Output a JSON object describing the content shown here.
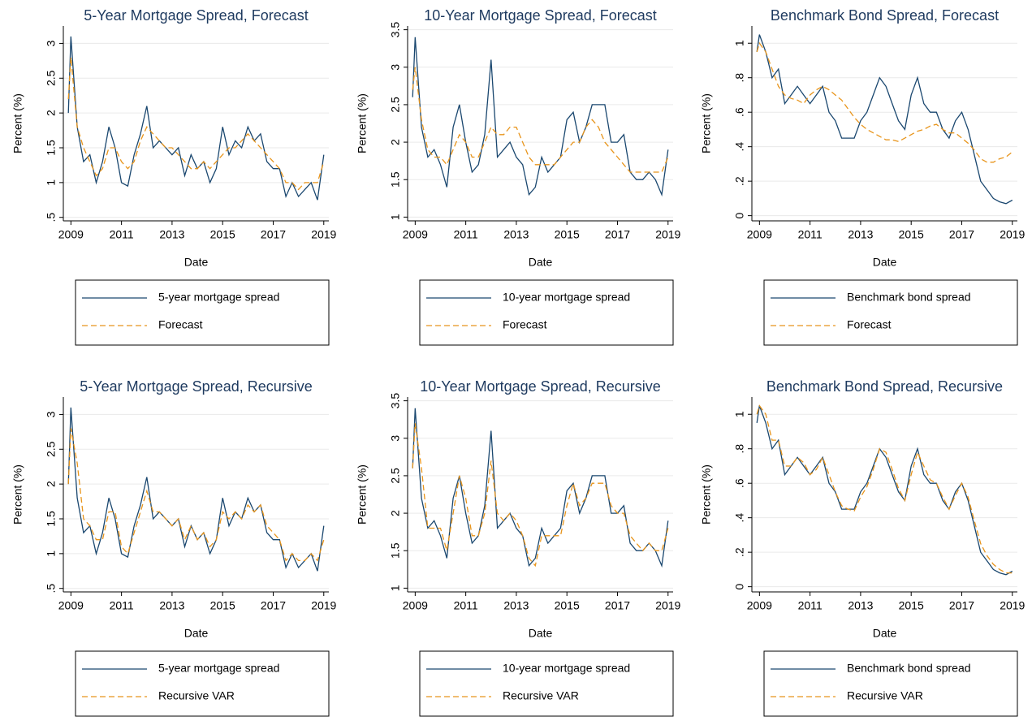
{
  "chart_data": [
    {
      "type": "line",
      "title": "5-Year Mortgage Spread, Forecast",
      "xlabel": "Date",
      "ylabel": "Percent (%)",
      "x": [
        2008.9,
        2009,
        2009.25,
        2009.5,
        2009.75,
        2010,
        2010.25,
        2010.5,
        2010.75,
        2011,
        2011.25,
        2011.5,
        2011.75,
        2012,
        2012.25,
        2012.5,
        2012.75,
        2013,
        2013.25,
        2013.5,
        2013.75,
        2014,
        2014.25,
        2014.5,
        2014.75,
        2015,
        2015.25,
        2015.5,
        2015.75,
        2016,
        2016.25,
        2016.5,
        2016.75,
        2017,
        2017.25,
        2017.5,
        2017.75,
        2018,
        2018.25,
        2018.5,
        2018.75,
        2019
      ],
      "xlim": [
        2008.7,
        2019.2
      ],
      "xticks": [
        2009,
        2011,
        2013,
        2015,
        2017,
        2019
      ],
      "ylim": [
        0.45,
        3.25
      ],
      "yticks": [
        {
          "value": 0.5,
          "label": ".5"
        },
        1,
        1.5,
        2,
        2.5,
        3
      ],
      "grid": true,
      "series": [
        {
          "name": "5-year mortgage spread",
          "color": "#1a476f",
          "dashed": false,
          "values": [
            2.0,
            3.1,
            1.8,
            1.3,
            1.4,
            1.0,
            1.3,
            1.8,
            1.5,
            1.0,
            0.95,
            1.4,
            1.7,
            2.1,
            1.5,
            1.6,
            1.5,
            1.4,
            1.5,
            1.1,
            1.4,
            1.2,
            1.3,
            1.0,
            1.2,
            1.8,
            1.4,
            1.6,
            1.5,
            1.8,
            1.6,
            1.7,
            1.3,
            1.2,
            1.2,
            0.8,
            1.0,
            0.8,
            0.9,
            1.0,
            0.75,
            1.4
          ]
        },
        {
          "name": "Forecast",
          "color": "#e8951c",
          "dashed": true,
          "values": [
            2.2,
            2.8,
            1.8,
            1.5,
            1.3,
            1.1,
            1.2,
            1.5,
            1.5,
            1.3,
            1.2,
            1.3,
            1.6,
            1.8,
            1.7,
            1.6,
            1.5,
            1.5,
            1.4,
            1.3,
            1.2,
            1.2,
            1.3,
            1.2,
            1.3,
            1.4,
            1.5,
            1.5,
            1.6,
            1.7,
            1.6,
            1.5,
            1.4,
            1.3,
            1.2,
            1.0,
            1.0,
            0.9,
            1.0,
            1.0,
            1.0,
            1.3
          ]
        }
      ]
    },
    {
      "type": "line",
      "title": "10-Year Mortgage Spread, Forecast",
      "xlabel": "Date",
      "ylabel": "Percent (%)",
      "x": [
        2008.9,
        2009,
        2009.25,
        2009.5,
        2009.75,
        2010,
        2010.25,
        2010.5,
        2010.75,
        2011,
        2011.25,
        2011.5,
        2011.75,
        2012,
        2012.25,
        2012.5,
        2012.75,
        2013,
        2013.25,
        2013.5,
        2013.75,
        2014,
        2014.25,
        2014.5,
        2014.75,
        2015,
        2015.25,
        2015.5,
        2015.75,
        2016,
        2016.25,
        2016.5,
        2016.75,
        2017,
        2017.25,
        2017.5,
        2017.75,
        2018,
        2018.25,
        2018.5,
        2018.75,
        2019
      ],
      "xlim": [
        2008.7,
        2019.2
      ],
      "xticks": [
        2009,
        2011,
        2013,
        2015,
        2017,
        2019
      ],
      "ylim": [
        0.95,
        3.55
      ],
      "yticks": [
        1,
        1.5,
        2,
        2.5,
        3,
        3.5
      ],
      "grid": true,
      "series": [
        {
          "name": "10-year mortgage spread",
          "color": "#1a476f",
          "dashed": false,
          "values": [
            2.6,
            3.4,
            2.2,
            1.8,
            1.9,
            1.7,
            1.4,
            2.2,
            2.5,
            2.0,
            1.6,
            1.7,
            2.1,
            3.1,
            1.8,
            1.9,
            2.0,
            1.8,
            1.7,
            1.3,
            1.4,
            1.8,
            1.6,
            1.7,
            1.8,
            2.3,
            2.4,
            2.0,
            2.2,
            2.5,
            2.5,
            2.5,
            2.0,
            2.0,
            2.1,
            1.6,
            1.5,
            1.5,
            1.6,
            1.5,
            1.3,
            1.9
          ]
        },
        {
          "name": "Forecast",
          "color": "#e8951c",
          "dashed": true,
          "values": [
            2.7,
            3.0,
            2.3,
            1.9,
            1.8,
            1.8,
            1.7,
            1.9,
            2.1,
            2.0,
            1.8,
            1.8,
            2.0,
            2.2,
            2.1,
            2.1,
            2.2,
            2.2,
            2.0,
            1.8,
            1.7,
            1.7,
            1.7,
            1.7,
            1.8,
            1.9,
            2.0,
            2.0,
            2.2,
            2.3,
            2.2,
            2.0,
            1.9,
            1.8,
            1.7,
            1.6,
            1.6,
            1.6,
            1.6,
            1.6,
            1.6,
            1.8
          ]
        }
      ]
    },
    {
      "type": "line",
      "title": "Benchmark Bond Spread, Forecast",
      "xlabel": "Date",
      "ylabel": "Percent (%)",
      "x": [
        2008.9,
        2009,
        2009.25,
        2009.5,
        2009.75,
        2010,
        2010.25,
        2010.5,
        2010.75,
        2011,
        2011.25,
        2011.5,
        2011.75,
        2012,
        2012.25,
        2012.5,
        2012.75,
        2013,
        2013.25,
        2013.5,
        2013.75,
        2014,
        2014.25,
        2014.5,
        2014.75,
        2015,
        2015.25,
        2015.5,
        2015.75,
        2016,
        2016.25,
        2016.5,
        2016.75,
        2017,
        2017.25,
        2017.5,
        2017.75,
        2018,
        2018.25,
        2018.5,
        2018.75,
        2019
      ],
      "xlim": [
        2008.7,
        2019.2
      ],
      "xticks": [
        2009,
        2011,
        2013,
        2015,
        2017,
        2019
      ],
      "ylim": [
        -0.03,
        1.1
      ],
      "yticks": [
        0,
        {
          "value": 0.2,
          "label": ".2"
        },
        {
          "value": 0.4,
          "label": ".4"
        },
        {
          "value": 0.6,
          "label": ".6"
        },
        {
          "value": 0.8,
          "label": ".8"
        },
        1
      ],
      "grid": true,
      "series": [
        {
          "name": "Benchmark bond spread",
          "color": "#1a476f",
          "dashed": false,
          "values": [
            0.95,
            1.05,
            0.95,
            0.8,
            0.85,
            0.65,
            0.7,
            0.75,
            0.7,
            0.65,
            0.7,
            0.75,
            0.6,
            0.55,
            0.45,
            0.45,
            0.45,
            0.55,
            0.6,
            0.7,
            0.8,
            0.75,
            0.65,
            0.55,
            0.5,
            0.7,
            0.8,
            0.65,
            0.6,
            0.6,
            0.5,
            0.45,
            0.55,
            0.6,
            0.5,
            0.35,
            0.2,
            0.15,
            0.1,
            0.08,
            0.07,
            0.09
          ]
        },
        {
          "name": "Forecast",
          "color": "#e8951c",
          "dashed": true,
          "values": [
            0.95,
            1.0,
            0.95,
            0.85,
            0.75,
            0.7,
            0.68,
            0.67,
            0.65,
            0.7,
            0.73,
            0.75,
            0.73,
            0.7,
            0.67,
            0.62,
            0.57,
            0.53,
            0.5,
            0.48,
            0.46,
            0.44,
            0.44,
            0.43,
            0.45,
            0.47,
            0.49,
            0.5,
            0.52,
            0.53,
            0.5,
            0.48,
            0.48,
            0.45,
            0.42,
            0.38,
            0.33,
            0.31,
            0.31,
            0.33,
            0.34,
            0.37
          ]
        }
      ]
    },
    {
      "type": "line",
      "title": "5-Year Mortgage Spread, Recursive",
      "xlabel": "Date",
      "ylabel": "Percent (%)",
      "x": [
        2008.9,
        2009,
        2009.25,
        2009.5,
        2009.75,
        2010,
        2010.25,
        2010.5,
        2010.75,
        2011,
        2011.25,
        2011.5,
        2011.75,
        2012,
        2012.25,
        2012.5,
        2012.75,
        2013,
        2013.25,
        2013.5,
        2013.75,
        2014,
        2014.25,
        2014.5,
        2014.75,
        2015,
        2015.25,
        2015.5,
        2015.75,
        2016,
        2016.25,
        2016.5,
        2016.75,
        2017,
        2017.25,
        2017.5,
        2017.75,
        2018,
        2018.25,
        2018.5,
        2018.75,
        2019
      ],
      "xlim": [
        2008.7,
        2019.2
      ],
      "xticks": [
        2009,
        2011,
        2013,
        2015,
        2017,
        2019
      ],
      "ylim": [
        0.45,
        3.25
      ],
      "yticks": [
        {
          "value": 0.5,
          "label": ".5"
        },
        1,
        1.5,
        2,
        2.5,
        3
      ],
      "grid": true,
      "series": [
        {
          "name": "5-year mortgage spread",
          "color": "#1a476f",
          "dashed": false,
          "values": [
            2.0,
            3.1,
            1.8,
            1.3,
            1.4,
            1.0,
            1.3,
            1.8,
            1.5,
            1.0,
            0.95,
            1.4,
            1.7,
            2.1,
            1.5,
            1.6,
            1.5,
            1.4,
            1.5,
            1.1,
            1.4,
            1.2,
            1.3,
            1.0,
            1.2,
            1.8,
            1.4,
            1.6,
            1.5,
            1.8,
            1.6,
            1.7,
            1.3,
            1.2,
            1.2,
            0.8,
            1.0,
            0.8,
            0.9,
            1.0,
            0.75,
            1.4
          ]
        },
        {
          "name": "Recursive VAR",
          "color": "#e8951c",
          "dashed": true,
          "values": [
            2.0,
            2.8,
            2.3,
            1.5,
            1.4,
            1.2,
            1.2,
            1.6,
            1.6,
            1.1,
            1.0,
            1.3,
            1.6,
            1.9,
            1.6,
            1.6,
            1.5,
            1.4,
            1.5,
            1.2,
            1.4,
            1.2,
            1.3,
            1.1,
            1.2,
            1.6,
            1.5,
            1.6,
            1.5,
            1.7,
            1.6,
            1.7,
            1.4,
            1.3,
            1.2,
            0.9,
            1.0,
            0.9,
            0.9,
            1.0,
            0.9,
            1.2
          ]
        }
      ]
    },
    {
      "type": "line",
      "title": "10-Year Mortgage Spread, Recursive",
      "xlabel": "Date",
      "ylabel": "Percent (%)",
      "x": [
        2008.9,
        2009,
        2009.25,
        2009.5,
        2009.75,
        2010,
        2010.25,
        2010.5,
        2010.75,
        2011,
        2011.25,
        2011.5,
        2011.75,
        2012,
        2012.25,
        2012.5,
        2012.75,
        2013,
        2013.25,
        2013.5,
        2013.75,
        2014,
        2014.25,
        2014.5,
        2014.75,
        2015,
        2015.25,
        2015.5,
        2015.75,
        2016,
        2016.25,
        2016.5,
        2016.75,
        2017,
        2017.25,
        2017.5,
        2017.75,
        2018,
        2018.25,
        2018.5,
        2018.75,
        2019
      ],
      "xlim": [
        2008.7,
        2019.2
      ],
      "xticks": [
        2009,
        2011,
        2013,
        2015,
        2017,
        2019
      ],
      "ylim": [
        0.95,
        3.55
      ],
      "yticks": [
        1,
        1.5,
        2,
        2.5,
        3,
        3.5
      ],
      "grid": true,
      "series": [
        {
          "name": "10-year mortgage spread",
          "color": "#1a476f",
          "dashed": false,
          "values": [
            2.6,
            3.4,
            2.2,
            1.8,
            1.9,
            1.7,
            1.4,
            2.2,
            2.5,
            2.0,
            1.6,
            1.7,
            2.1,
            3.1,
            1.8,
            1.9,
            2.0,
            1.8,
            1.7,
            1.3,
            1.4,
            1.8,
            1.6,
            1.7,
            1.8,
            2.3,
            2.4,
            2.0,
            2.2,
            2.5,
            2.5,
            2.5,
            2.0,
            2.0,
            2.1,
            1.6,
            1.5,
            1.5,
            1.6,
            1.5,
            1.3,
            1.9
          ]
        },
        {
          "name": "Recursive VAR",
          "color": "#e8951c",
          "dashed": true,
          "values": [
            2.6,
            3.2,
            2.6,
            1.8,
            1.8,
            1.8,
            1.5,
            2.0,
            2.5,
            2.2,
            1.7,
            1.7,
            2.0,
            2.7,
            2.0,
            1.9,
            2.0,
            1.9,
            1.7,
            1.4,
            1.3,
            1.7,
            1.7,
            1.7,
            1.7,
            2.1,
            2.4,
            2.1,
            2.2,
            2.4,
            2.4,
            2.4,
            2.1,
            2.0,
            2.0,
            1.7,
            1.6,
            1.5,
            1.6,
            1.5,
            1.5,
            1.8
          ]
        }
      ]
    },
    {
      "type": "line",
      "title": "Benchmark Bond Spread, Recursive",
      "xlabel": "Date",
      "ylabel": "Percent (%)",
      "x": [
        2008.9,
        2009,
        2009.25,
        2009.5,
        2009.75,
        2010,
        2010.25,
        2010.5,
        2010.75,
        2011,
        2011.25,
        2011.5,
        2011.75,
        2012,
        2012.25,
        2012.5,
        2012.75,
        2013,
        2013.25,
        2013.5,
        2013.75,
        2014,
        2014.25,
        2014.5,
        2014.75,
        2015,
        2015.25,
        2015.5,
        2015.75,
        2016,
        2016.25,
        2016.5,
        2016.75,
        2017,
        2017.25,
        2017.5,
        2017.75,
        2018,
        2018.25,
        2018.5,
        2018.75,
        2019
      ],
      "xlim": [
        2008.7,
        2019.2
      ],
      "xticks": [
        2009,
        2011,
        2013,
        2015,
        2017,
        2019
      ],
      "ylim": [
        -0.03,
        1.1
      ],
      "yticks": [
        0,
        {
          "value": 0.2,
          "label": ".2"
        },
        {
          "value": 0.4,
          "label": ".4"
        },
        {
          "value": 0.6,
          "label": ".6"
        },
        {
          "value": 0.8,
          "label": ".8"
        },
        1
      ],
      "grid": true,
      "series": [
        {
          "name": "Benchmark bond spread",
          "color": "#1a476f",
          "dashed": false,
          "values": [
            0.95,
            1.05,
            0.95,
            0.8,
            0.85,
            0.65,
            0.7,
            0.75,
            0.7,
            0.65,
            0.7,
            0.75,
            0.6,
            0.55,
            0.45,
            0.45,
            0.45,
            0.55,
            0.6,
            0.7,
            0.8,
            0.75,
            0.65,
            0.55,
            0.5,
            0.7,
            0.8,
            0.65,
            0.6,
            0.6,
            0.5,
            0.45,
            0.55,
            0.6,
            0.5,
            0.35,
            0.2,
            0.15,
            0.1,
            0.08,
            0.07,
            0.09
          ]
        },
        {
          "name": "Recursive VAR",
          "color": "#e8951c",
          "dashed": true,
          "values": [
            1.0,
            1.05,
            1.0,
            0.85,
            0.85,
            0.7,
            0.7,
            0.75,
            0.72,
            0.65,
            0.68,
            0.75,
            0.65,
            0.55,
            0.47,
            0.45,
            0.44,
            0.52,
            0.58,
            0.68,
            0.8,
            0.78,
            0.68,
            0.57,
            0.5,
            0.65,
            0.78,
            0.7,
            0.62,
            0.6,
            0.52,
            0.45,
            0.53,
            0.6,
            0.52,
            0.38,
            0.25,
            0.18,
            0.13,
            0.1,
            0.08,
            0.08
          ]
        }
      ]
    }
  ]
}
